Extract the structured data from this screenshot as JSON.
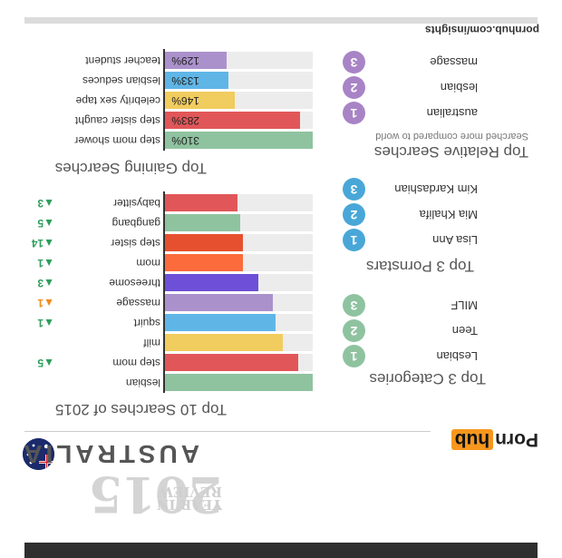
{
  "header": {
    "year": "2015",
    "year_sub_1": "YEAR IN",
    "year_sub_2": "REVIEW",
    "country": "AUSTRALIA",
    "brand_left": "Porn",
    "brand_right": "hub",
    "site": "pornhub.com/insights"
  },
  "colors": {
    "bar_track": "#ececec",
    "rank_up": "#2e9e5b",
    "rank_new": "#f08a1c",
    "circle_purple": "#a884c6",
    "circle_blue": "#49a7d8",
    "circle_green": "#8fc3a0",
    "brand_orange": "#f7971d"
  },
  "chart_data": [
    {
      "type": "bar",
      "orientation": "horizontal",
      "title": "Top 10 Searches of 2015",
      "categories": [
        "lesbian",
        "step mom",
        "milf",
        "squirt",
        "massage",
        "threesome",
        "mom",
        "step sister",
        "gangbang",
        "babysitter"
      ],
      "values": [
        10,
        9,
        8,
        7.5,
        7.3,
        6.3,
        5.3,
        5.3,
        5.1,
        4.9
      ],
      "colors": [
        "#8fc3a0",
        "#e15759",
        "#f1cc5e",
        "#5fb6e6",
        "#ab91cc",
        "#6d4fd8",
        "#fb6b3c",
        "#e6502e",
        "#8fc3a0",
        "#e15759"
      ],
      "rank_changes": [
        "",
        "▲5",
        "",
        "▲1",
        "▲1",
        "▲3",
        "▲1",
        "▲14",
        "▲5",
        "▲3"
      ],
      "rank_change_colors": [
        "",
        "#2e9e5b",
        "",
        "#2e9e5b",
        "#f08a1c",
        "#2e9e5b",
        "#2e9e5b",
        "#2e9e5b",
        "#2e9e5b",
        "#2e9e5b"
      ],
      "xlim": [
        0,
        10
      ]
    },
    {
      "type": "bar",
      "orientation": "horizontal",
      "title": "Top Gaining Searches",
      "categories": [
        "step mom shower",
        "step sister caught",
        "celebrity sex tape",
        "lesbian seduces",
        "teacher student"
      ],
      "values": [
        310,
        283,
        146,
        133,
        129
      ],
      "labels": [
        "310%",
        "283%",
        "146%",
        "133%",
        "129%"
      ],
      "colors": [
        "#8fc3a0",
        "#e15759",
        "#f1cc5e",
        "#5fb6e6",
        "#ab91cc"
      ],
      "xlim": [
        0,
        310
      ]
    }
  ],
  "categories_section": {
    "title": "Top 3 Categories",
    "items": [
      {
        "rank": "1",
        "label": "Lesbian",
        "color": "#8fc3a0"
      },
      {
        "rank": "2",
        "label": "Teen",
        "color": "#8fc3a0"
      },
      {
        "rank": "3",
        "label": "MILF",
        "color": "#8fc3a0"
      }
    ]
  },
  "pornstars_section": {
    "title": "Top 3 Pornstars",
    "items": [
      {
        "rank": "1",
        "label": "Lisa Ann",
        "color": "#49a7d8"
      },
      {
        "rank": "2",
        "label": "Mia Khalifa",
        "color": "#49a7d8"
      },
      {
        "rank": "3",
        "label": "Kim Kardashian",
        "color": "#49a7d8"
      }
    ]
  },
  "relative_section": {
    "title": "Top Relative Searches",
    "subtitle": "Searched more compared to world",
    "items": [
      {
        "rank": "1",
        "label": "australian",
        "color": "#a884c6"
      },
      {
        "rank": "2",
        "label": "lesbian",
        "color": "#a884c6"
      },
      {
        "rank": "3",
        "label": "massage",
        "color": "#a884c6"
      }
    ]
  }
}
